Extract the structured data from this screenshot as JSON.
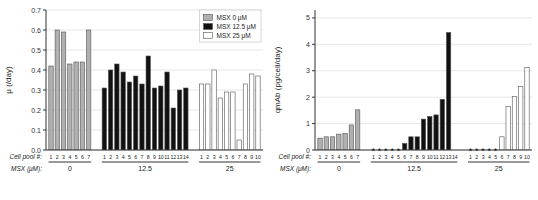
{
  "chart_data": [
    {
      "type": "bar",
      "ylabel": "μ (/day)",
      "xlabel": "Cell pool #:",
      "group_axis_label": "MSX (μM):",
      "ylim": [
        0,
        0.7
      ],
      "yticks": [
        {
          "value": 0.0,
          "label": "0.0"
        },
        0.1,
        0.2,
        0.3,
        0.4,
        0.5,
        0.6,
        0.7
      ],
      "legend": "upper right",
      "series": [
        {
          "name": "MSX 0 μM",
          "group": "0",
          "color": "#b0b0b0",
          "categories": [
            "1",
            "2",
            "3",
            "4",
            "5",
            "6",
            "7"
          ],
          "values": [
            0.42,
            0.6,
            0.59,
            0.43,
            0.44,
            0.44,
            0.6
          ]
        },
        {
          "name": "MSX 12.5 μM",
          "group": "12.5",
          "color": "#111111",
          "categories": [
            "1",
            "2",
            "3",
            "4",
            "5",
            "6",
            "7",
            "8",
            "9",
            "10",
            "11",
            "12",
            "13",
            "14"
          ],
          "values": [
            0.31,
            0.4,
            0.43,
            0.39,
            0.34,
            0.37,
            0.33,
            0.47,
            0.31,
            0.32,
            0.39,
            0.21,
            0.3,
            0.31
          ]
        },
        {
          "name": "MSX 25 μM",
          "group": "25",
          "color": "#ffffff",
          "categories": [
            "1",
            "2",
            "3",
            "4",
            "5",
            "6",
            "7",
            "8",
            "9",
            "10"
          ],
          "values": [
            0.33,
            0.33,
            0.4,
            0.26,
            0.29,
            0.29,
            0.05,
            0.33,
            0.38,
            0.37
          ]
        }
      ]
    },
    {
      "type": "bar",
      "ylabel": "qmAb (pg/cell/day)",
      "xlabel": "Cell pool #:",
      "group_axis_label": "MSX (μM):",
      "ylim": [
        0,
        5.3
      ],
      "yticks": [
        0,
        1,
        2,
        3,
        4,
        5
      ],
      "series": [
        {
          "group": "0",
          "color": "#b0b0b0",
          "categories": [
            "1",
            "2",
            "3",
            "4",
            "5",
            "6",
            "7"
          ],
          "values": [
            0.45,
            0.5,
            0.5,
            0.6,
            0.62,
            0.95,
            1.52
          ]
        },
        {
          "group": "12.5",
          "color": "#111111",
          "categories": [
            "1",
            "2",
            "3",
            "4",
            "5",
            "6",
            "7",
            "8",
            "9",
            "10",
            "11",
            "12",
            "13",
            "14"
          ],
          "values": [
            null,
            null,
            null,
            null,
            null,
            0.25,
            0.5,
            0.5,
            1.17,
            1.27,
            1.33,
            1.92,
            4.45,
            0.0
          ],
          "annotations": [
            "*",
            "*",
            "*",
            "*",
            "*",
            null,
            null,
            null,
            null,
            null,
            null,
            null,
            null,
            null
          ]
        },
        {
          "group": "25",
          "color": "#ffffff",
          "categories": [
            "1",
            "2",
            "3",
            "4",
            "5",
            "6",
            "7",
            "8",
            "9",
            "10"
          ],
          "values": [
            null,
            null,
            null,
            null,
            null,
            0.5,
            1.65,
            2.02,
            2.4,
            3.13
          ],
          "annotations": [
            "*",
            "*",
            "*",
            "*",
            "*",
            null,
            null,
            null,
            null,
            null
          ]
        }
      ]
    }
  ]
}
